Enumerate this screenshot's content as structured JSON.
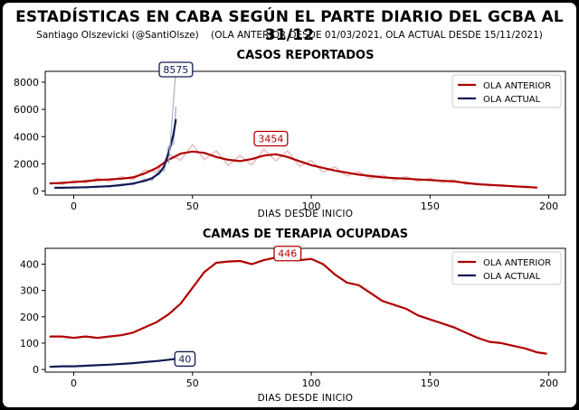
{
  "title": "ESTADÍSTICAS EN CABA SEGÚN EL PARTE DIARIO DEL GCBA AL 31/12",
  "subtitle": "Santiago Olszevicki (@SantiOlsze)    (OLA ANTERIOR DESDE 01/03/2021, OLA ACTUAL DESDE 15/11/2021)",
  "colors": {
    "ola_anterior": "#b00000",
    "ola_actual": "#111a55",
    "raw_anterior": "#e8b8b8",
    "raw_actual": "#aab0cc"
  },
  "chart_data": [
    {
      "type": "line",
      "title": "CASOS REPORTADOS",
      "xlabel": "DIAS DESDE INICIO",
      "ylabel": "",
      "xlim": [
        -12,
        207
      ],
      "ylim": [
        -300,
        8800
      ],
      "xticks": [
        0,
        50,
        100,
        150,
        200
      ],
      "yticks": [
        0,
        2000,
        4000,
        6000,
        8000
      ],
      "legend": "top-right",
      "series": [
        {
          "name": "OLA ANTERIOR",
          "color": "#b00000",
          "x": [
            -10,
            -5,
            0,
            5,
            10,
            15,
            20,
            25,
            30,
            35,
            40,
            45,
            50,
            55,
            60,
            65,
            70,
            75,
            80,
            85,
            90,
            95,
            100,
            105,
            110,
            115,
            120,
            125,
            130,
            135,
            140,
            145,
            150,
            155,
            160,
            165,
            170,
            175,
            180,
            185,
            190,
            195
          ],
          "values": [
            550,
            600,
            650,
            720,
            800,
            850,
            900,
            1000,
            1300,
            1700,
            2300,
            2750,
            2900,
            2800,
            2500,
            2300,
            2200,
            2350,
            2600,
            2700,
            2500,
            2200,
            1900,
            1700,
            1500,
            1350,
            1200,
            1100,
            1000,
            950,
            900,
            850,
            800,
            750,
            700,
            600,
            500,
            450,
            400,
            350,
            300,
            250
          ]
        },
        {
          "name": "OLA ACTUAL",
          "color": "#111a55",
          "x": [
            -8,
            -5,
            0,
            5,
            10,
            15,
            20,
            25,
            30,
            33,
            36,
            38,
            40,
            42,
            43
          ],
          "values": [
            230,
            240,
            250,
            280,
            310,
            360,
            430,
            550,
            750,
            950,
            1300,
            1800,
            2800,
            4200,
            5250
          ]
        }
      ],
      "annotations": [
        {
          "text": "8575",
          "x": 43,
          "y": 8575,
          "series": "OLA ACTUAL"
        },
        {
          "text": "3454",
          "x": 83,
          "y": 3454,
          "series": "OLA ANTERIOR"
        }
      ]
    },
    {
      "type": "line",
      "title": "CAMAS DE TERAPIA OCUPADAS",
      "xlabel": "DIAS DESDE INICIO",
      "ylabel": "",
      "xlim": [
        -12,
        207
      ],
      "ylim": [
        -10,
        460
      ],
      "xticks": [
        0,
        50,
        100,
        150,
        200
      ],
      "yticks": [
        0,
        100,
        200,
        300,
        400
      ],
      "legend": "top-right",
      "series": [
        {
          "name": "OLA ANTERIOR",
          "color": "#b00000",
          "x": [
            -10,
            -5,
            0,
            5,
            10,
            15,
            20,
            25,
            30,
            35,
            40,
            45,
            50,
            55,
            60,
            65,
            70,
            75,
            80,
            85,
            90,
            95,
            100,
            105,
            110,
            115,
            120,
            125,
            130,
            135,
            140,
            145,
            150,
            155,
            160,
            165,
            170,
            175,
            180,
            185,
            190,
            195,
            199
          ],
          "values": [
            125,
            125,
            120,
            125,
            120,
            125,
            130,
            140,
            160,
            180,
            210,
            250,
            310,
            370,
            405,
            410,
            412,
            400,
            415,
            425,
            425,
            415,
            420,
            400,
            360,
            330,
            320,
            290,
            260,
            245,
            230,
            205,
            190,
            175,
            160,
            140,
            120,
            105,
            100,
            90,
            80,
            65,
            60
          ]
        },
        {
          "name": "OLA ACTUAL",
          "color": "#111a55",
          "x": [
            -10,
            -5,
            0,
            5,
            10,
            15,
            20,
            25,
            30,
            35,
            40,
            43
          ],
          "values": [
            10,
            12,
            12,
            14,
            16,
            18,
            21,
            24,
            28,
            32,
            37,
            40
          ]
        }
      ],
      "annotations": [
        {
          "text": "446",
          "x": 90,
          "y": 430,
          "series": "OLA ANTERIOR"
        },
        {
          "text": "40",
          "x": 43,
          "y": 40,
          "series": "OLA ACTUAL"
        }
      ]
    }
  ]
}
